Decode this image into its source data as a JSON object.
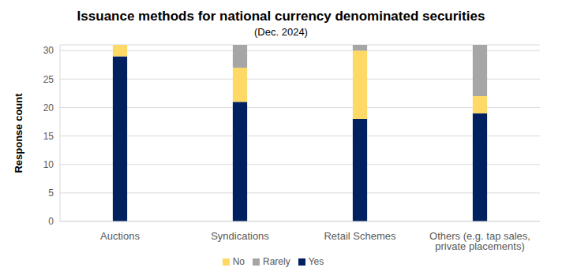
{
  "chart_data": {
    "type": "bar",
    "title": "Issuance methods for national currency denominated securities",
    "subtitle": "(Dec. 2024)",
    "y_label": "Response count",
    "categories": [
      "Auctions",
      "Syndications",
      "Retail Schemes",
      "Others (e.g. tap sales, private placements)"
    ],
    "series": [
      {
        "name": "Yes",
        "color": "#002060",
        "values": [
          29,
          21,
          18,
          19
        ]
      },
      {
        "name": "No",
        "color": "#FFD966",
        "values": [
          2,
          6,
          12,
          3
        ]
      },
      {
        "name": "Rarely",
        "color": "#A6A6A6",
        "values": [
          0,
          4,
          1,
          9
        ]
      }
    ],
    "stacked": true,
    "ylim": [
      0,
      31
    ],
    "yticks": [
      0,
      5,
      10,
      15,
      20,
      25,
      30
    ],
    "grid": true,
    "legend": "bottom"
  }
}
